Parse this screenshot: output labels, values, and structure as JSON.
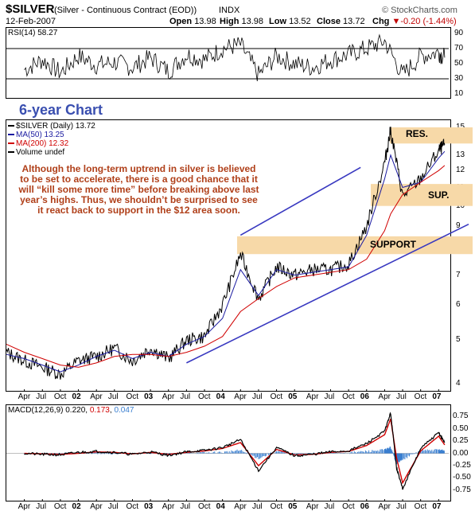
{
  "header": {
    "symbol": "$SILVER",
    "description": "(Silver - Continuous Contract (EOD))",
    "exchange": "INDX",
    "watermark": "© StockCharts.com",
    "date": "12-Feb-2007",
    "open_label": "Open",
    "open_value": "13.98",
    "high_label": "High",
    "high_value": "13.98",
    "low_label": "Low",
    "low_value": "13.52",
    "close_label": "Close",
    "close_value": "13.72",
    "chg_label": "Chg",
    "chg_value": "-0.20 (-1.44%)",
    "chg_arrow": "▼"
  },
  "rsi_panel": {
    "label": "RSI(14) 58.27",
    "y_ticks": [
      "90",
      "70",
      "50",
      "30",
      "10"
    ],
    "levels": [
      30,
      70
    ]
  },
  "price_panel": {
    "title": "6-year Chart",
    "legend": [
      {
        "text": "$SILVER (Daily) 13.72",
        "color": "#000000"
      },
      {
        "text": "MA(50) 13.25",
        "color": "#1a1aa0"
      },
      {
        "text": "MA(200) 12.32",
        "color": "#d00000"
      },
      {
        "text": "Volume undef",
        "color": "#000000"
      }
    ],
    "annotation": "Although the long-term uptrend in silver is believed to be set to accelerate, there is a good chance that it will “kill some more time” before breaking above last year’s highs. Thus, we shouldn’t be surprised to see it react back to support in the $12 area soon.",
    "res_label": "RES.",
    "sup_label": "SUP.",
    "support_label": "SUPPORT",
    "y_ticks": [
      "15",
      "14",
      "13",
      "12",
      "11",
      "10",
      "9",
      "8",
      "7",
      "6",
      "5",
      "4"
    ]
  },
  "macd_panel": {
    "label_prefix": "MACD(12,26,9)",
    "macd_value": "0.220",
    "signal_value": "0.173",
    "hist_value": "0.047",
    "y_ticks": [
      "0.75",
      "0.50",
      "0.25",
      "0.00",
      "-0.25",
      "-0.50",
      "-0.75"
    ]
  },
  "x_axis": {
    "labels": [
      "Apr",
      "Jul",
      "Oct",
      "02",
      "Apr",
      "Jul",
      "Oct",
      "03",
      "Apr",
      "Jul",
      "Oct",
      "04",
      "Apr",
      "Jul",
      "Oct",
      "05",
      "Apr",
      "Jul",
      "Oct",
      "06",
      "Apr",
      "Jul",
      "Oct",
      "07"
    ]
  },
  "colors": {
    "price": "#000000",
    "ma50": "#1a1aa0",
    "ma200": "#d00000",
    "trendline": "#3838c0",
    "zone_fill": "#f7d9a8",
    "annotation": "#b0401a",
    "title": "#3a4fb0",
    "macd_signal": "#d00000",
    "macd_hist": "#3a7fd0"
  },
  "chart_data": [
    {
      "type": "line",
      "title": "RSI(14)",
      "ylim": [
        10,
        90
      ],
      "x": [
        "2001-04",
        "2001-07",
        "2001-10",
        "2002-01",
        "2002-04",
        "2002-07",
        "2002-10",
        "2003-01",
        "2003-04",
        "2003-07",
        "2003-10",
        "2004-01",
        "2004-04",
        "2004-07",
        "2004-10",
        "2005-01",
        "2005-04",
        "2005-07",
        "2005-10",
        "2006-01",
        "2006-04",
        "2006-07",
        "2006-10",
        "2007-01",
        "2007-02"
      ],
      "series": [
        {
          "name": "RSI(14)",
          "values": [
            42,
            55,
            38,
            60,
            48,
            52,
            45,
            58,
            40,
            62,
            55,
            70,
            75,
            35,
            60,
            50,
            45,
            55,
            62,
            70,
            80,
            35,
            60,
            65,
            58
          ]
        }
      ]
    },
    {
      "type": "line",
      "title": "$SILVER (Daily)",
      "ylabel": "",
      "ylim": [
        3.9,
        15.5
      ],
      "scale": "log",
      "x": [
        "2001-01",
        "2001-04",
        "2001-07",
        "2001-10",
        "2002-01",
        "2002-04",
        "2002-07",
        "2002-10",
        "2003-01",
        "2003-04",
        "2003-07",
        "2003-10",
        "2004-01",
        "2004-04",
        "2004-07",
        "2004-10",
        "2005-01",
        "2005-04",
        "2005-07",
        "2005-10",
        "2006-01",
        "2006-04",
        "2006-05",
        "2006-07",
        "2006-10",
        "2007-01",
        "2007-02"
      ],
      "series": [
        {
          "name": "$SILVER",
          "values": [
            4.7,
            4.5,
            4.35,
            4.2,
            4.5,
            4.6,
            4.8,
            4.5,
            4.8,
            4.55,
            5.0,
            5.1,
            6.0,
            7.8,
            6.2,
            7.3,
            7.0,
            7.2,
            7.2,
            7.4,
            9.0,
            12.5,
            14.8,
            10.5,
            11.5,
            13.3,
            13.72
          ]
        },
        {
          "name": "MA(50)",
          "values": [
            4.65,
            4.55,
            4.4,
            4.25,
            4.4,
            4.6,
            4.75,
            4.55,
            4.7,
            4.6,
            4.9,
            5.1,
            5.6,
            7.2,
            6.3,
            7.2,
            7.0,
            7.1,
            7.2,
            7.3,
            8.6,
            11.5,
            13.0,
            11.0,
            11.3,
            12.8,
            13.25
          ]
        },
        {
          "name": "MA(200)",
          "values": [
            4.9,
            4.7,
            4.55,
            4.4,
            4.35,
            4.45,
            4.6,
            4.65,
            4.65,
            4.6,
            4.7,
            4.85,
            5.1,
            5.8,
            6.2,
            6.6,
            6.9,
            7.0,
            7.1,
            7.2,
            7.6,
            8.8,
            9.6,
            10.6,
            11.3,
            12.0,
            12.32
          ]
        }
      ]
    },
    {
      "type": "line",
      "title": "MACD(12,26,9)",
      "ylim": [
        -0.85,
        0.9
      ],
      "x": [
        "2001-04",
        "2001-07",
        "2001-10",
        "2002-01",
        "2002-04",
        "2002-07",
        "2002-10",
        "2003-01",
        "2003-04",
        "2003-07",
        "2003-10",
        "2004-01",
        "2004-04",
        "2004-07",
        "2004-10",
        "2005-01",
        "2005-04",
        "2005-07",
        "2005-10",
        "2006-01",
        "2006-04",
        "2006-05",
        "2006-06",
        "2006-07",
        "2006-10",
        "2007-01",
        "2007-02"
      ],
      "series": [
        {
          "name": "MACD",
          "values": [
            0.0,
            -0.02,
            -0.03,
            0.02,
            0.04,
            0.02,
            -0.02,
            0.03,
            -0.04,
            0.03,
            0.06,
            0.12,
            0.28,
            -0.35,
            0.12,
            -0.05,
            -0.02,
            0.03,
            0.05,
            0.2,
            0.45,
            0.82,
            -0.3,
            -0.72,
            0.1,
            0.42,
            0.22
          ]
        },
        {
          "name": "Signal",
          "values": [
            0.0,
            -0.01,
            -0.02,
            0.0,
            0.03,
            0.02,
            -0.01,
            0.02,
            -0.02,
            0.02,
            0.05,
            0.1,
            0.22,
            -0.25,
            0.08,
            -0.03,
            -0.02,
            0.02,
            0.04,
            0.16,
            0.38,
            0.7,
            -0.1,
            -0.6,
            0.05,
            0.35,
            0.173
          ]
        }
      ]
    }
  ]
}
